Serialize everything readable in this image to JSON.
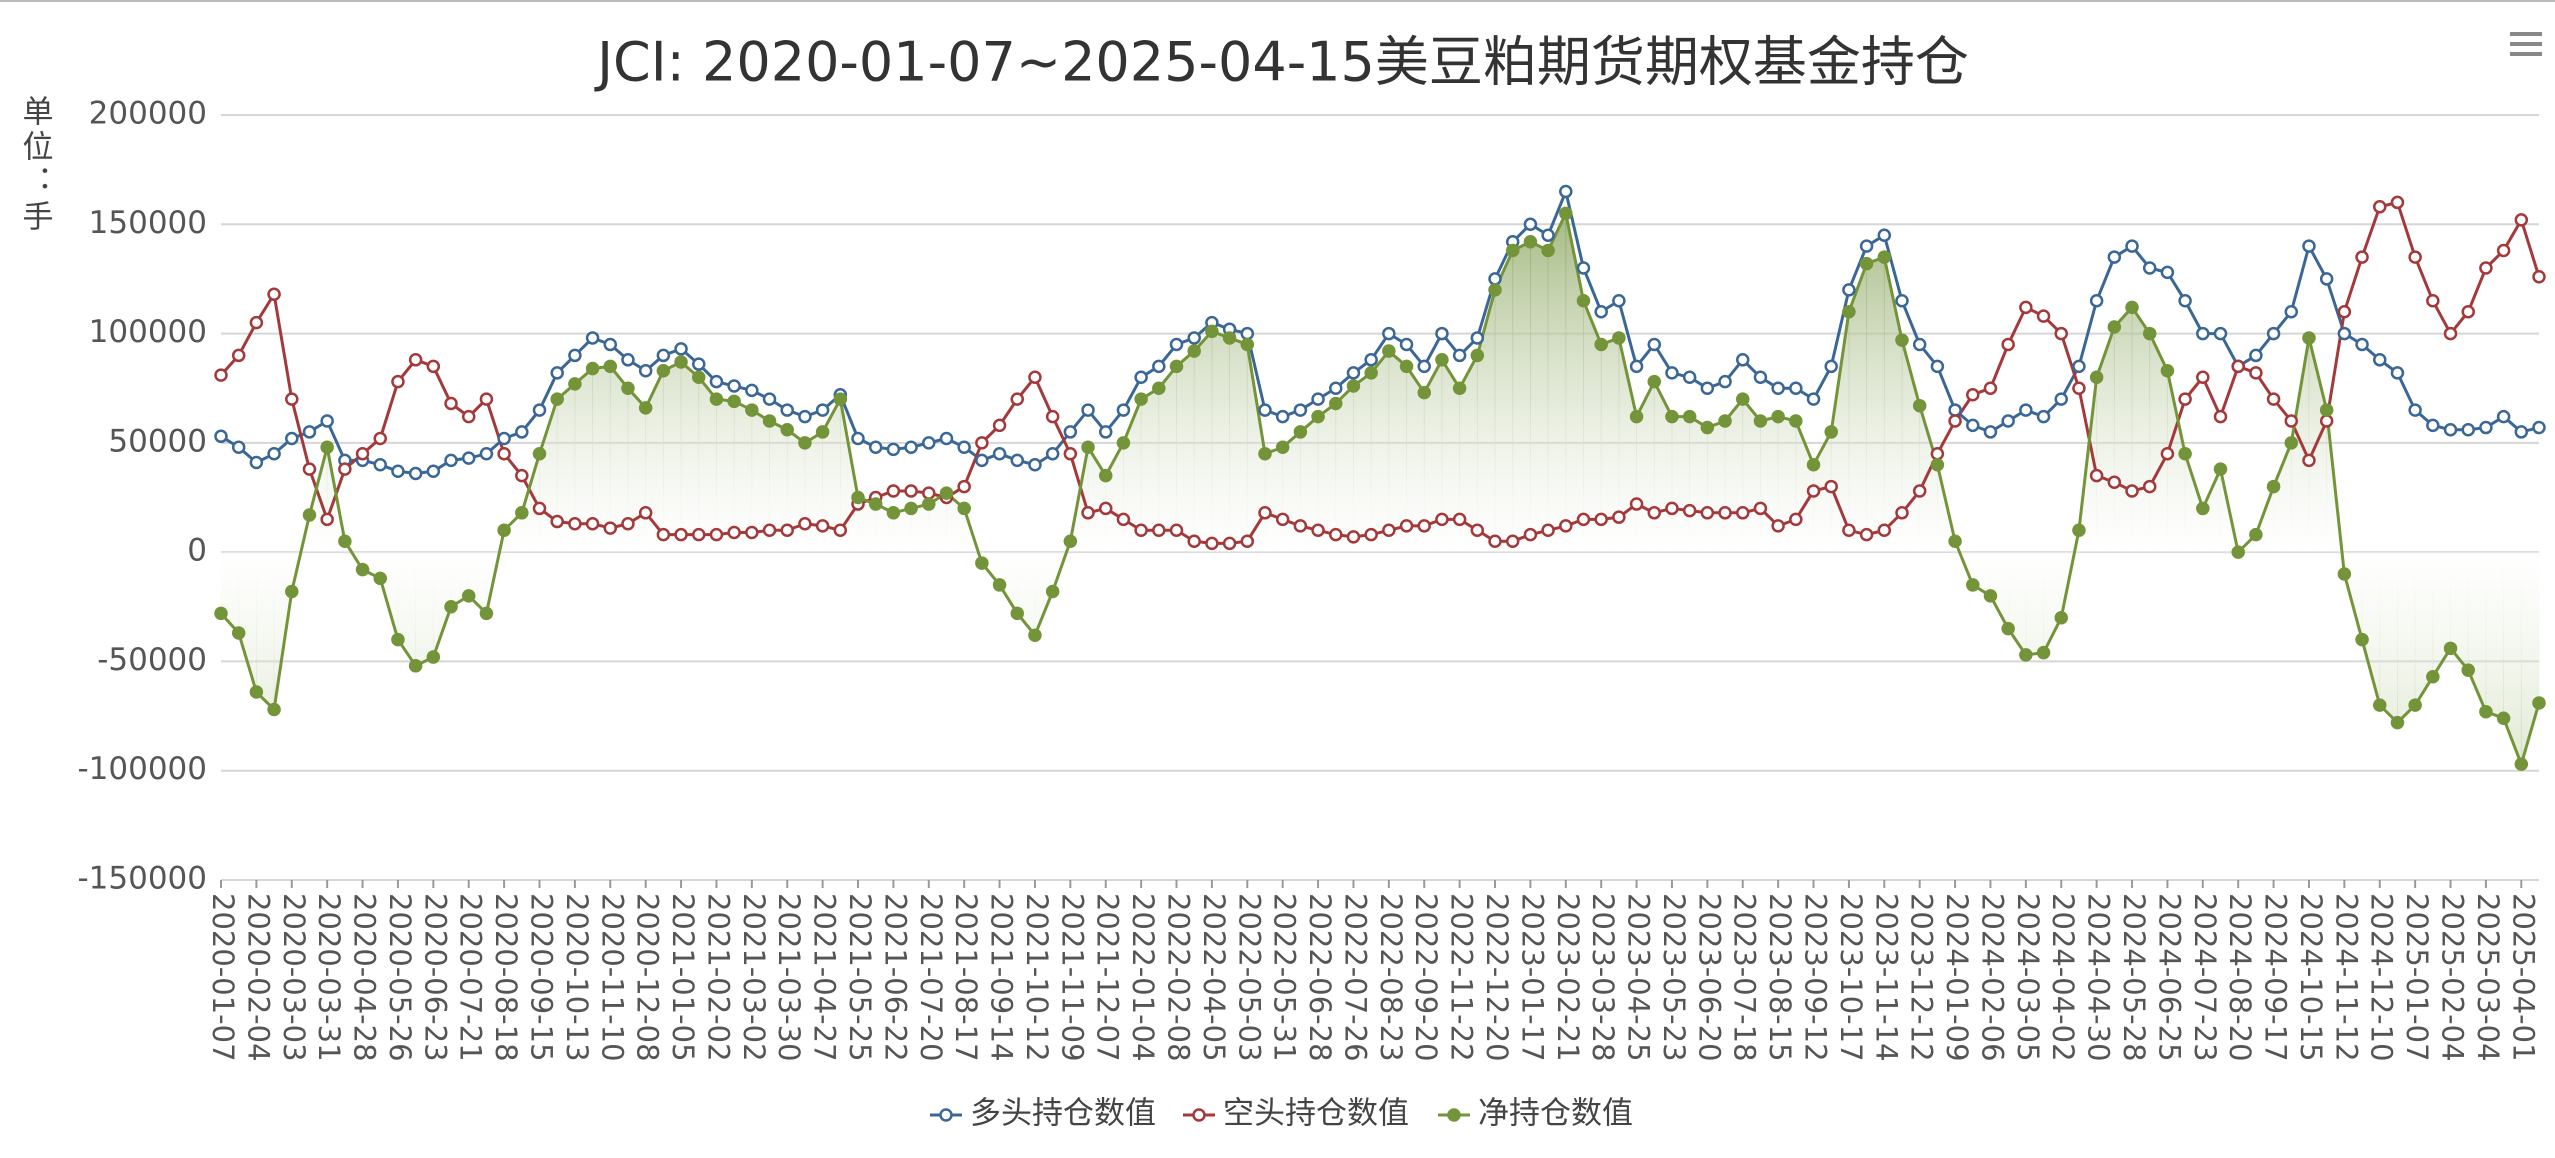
{
  "chart_data": {
    "type": "line",
    "title": "JCI: 2020-01-07~2025-04-15美豆粕期货期权基金持仓",
    "y_label": "单位：手",
    "categories": [
      "2020-01-07",
      null,
      "2020-02-04",
      null,
      "2020-03-03",
      null,
      "2020-03-31",
      null,
      "2020-04-28",
      null,
      "2020-05-26",
      null,
      "2020-06-23",
      null,
      "2020-07-21",
      null,
      "2020-08-18",
      null,
      "2020-09-15",
      null,
      "2020-10-13",
      null,
      "2020-11-10",
      null,
      "2020-12-08",
      null,
      "2021-01-05",
      null,
      "2021-02-02",
      null,
      "2021-03-02",
      null,
      "2021-03-30",
      null,
      "2021-04-27",
      null,
      "2021-05-25",
      null,
      "2021-06-22",
      null,
      "2021-07-20",
      null,
      "2021-08-17",
      null,
      "2021-09-14",
      null,
      "2021-10-12",
      null,
      "2021-11-09",
      null,
      "2021-12-07",
      null,
      "2022-01-04",
      null,
      "2022-02-08",
      null,
      "2022-04-05",
      null,
      "2022-05-03",
      null,
      "2022-05-31",
      null,
      "2022-06-28",
      null,
      "2022-07-26",
      null,
      "2022-08-23",
      null,
      "2022-09-20",
      null,
      "2022-11-22",
      null,
      "2022-12-20",
      null,
      "2023-01-17",
      null,
      "2023-02-21",
      null,
      "2023-03-28",
      null,
      "2023-04-25",
      null,
      "2023-05-23",
      null,
      "2023-06-20",
      null,
      "2023-07-18",
      null,
      "2023-08-15",
      null,
      "2023-09-12",
      null,
      "2023-10-17",
      null,
      "2023-11-14",
      null,
      "2023-12-12",
      null,
      "2024-01-09",
      null,
      "2024-02-06",
      null,
      "2024-03-05",
      null,
      "2024-04-02",
      null,
      "2024-04-30",
      null,
      "2024-05-28",
      null,
      "2024-06-25",
      null,
      "2024-07-23",
      null,
      "2024-08-20",
      null,
      "2024-09-17",
      null,
      "2024-10-15",
      null,
      "2024-11-12",
      null,
      "2024-12-10",
      null,
      "2025-01-07",
      null,
      "2025-02-04",
      null,
      "2025-03-04",
      null,
      "2025-04-01",
      null
    ],
    "series": [
      {
        "name": "多头持仓数值",
        "color": "#3a6796",
        "marker": "hollow",
        "values": [
          53000,
          48000,
          41000,
          45000,
          52000,
          55000,
          60000,
          42000,
          42000,
          40000,
          37000,
          36000,
          37000,
          42000,
          43000,
          45000,
          52000,
          55000,
          65000,
          82000,
          90000,
          98000,
          95000,
          88000,
          83000,
          90000,
          93000,
          86000,
          78000,
          76000,
          74000,
          70000,
          65000,
          62000,
          65000,
          72000,
          52000,
          48000,
          47000,
          48000,
          50000,
          52000,
          48000,
          42000,
          45000,
          42000,
          40000,
          45000,
          55000,
          65000,
          55000,
          65000,
          80000,
          85000,
          95000,
          98000,
          105000,
          102000,
          100000,
          65000,
          62000,
          65000,
          70000,
          75000,
          82000,
          88000,
          100000,
          95000,
          85000,
          100000,
          90000,
          98000,
          125000,
          142000,
          150000,
          145000,
          165000,
          130000,
          110000,
          115000,
          85000,
          95000,
          82000,
          80000,
          75000,
          78000,
          88000,
          80000,
          75000,
          75000,
          70000,
          85000,
          120000,
          140000,
          145000,
          115000,
          95000,
          85000,
          65000,
          58000,
          55000,
          60000,
          65000,
          62000,
          70000,
          85000,
          115000,
          135000,
          140000,
          130000,
          128000,
          115000,
          100000,
          100000,
          85000,
          90000,
          100000,
          110000,
          140000,
          125000,
          100000,
          95000,
          88000,
          82000,
          65000,
          58000,
          56000,
          56000,
          57000,
          62000,
          55000,
          57000
        ]
      },
      {
        "name": "空头持仓数值",
        "color": "#a3393a",
        "marker": "hollow",
        "values": [
          81000,
          90000,
          105000,
          118000,
          70000,
          38000,
          15000,
          38000,
          45000,
          52000,
          78000,
          88000,
          85000,
          68000,
          62000,
          70000,
          45000,
          35000,
          20000,
          14000,
          13000,
          13000,
          11000,
          13000,
          18000,
          8000,
          8000,
          8000,
          8000,
          9000,
          9000,
          10000,
          10000,
          13000,
          12000,
          10000,
          22000,
          25000,
          28000,
          28000,
          27000,
          25000,
          30000,
          50000,
          58000,
          70000,
          80000,
          62000,
          45000,
          18000,
          20000,
          15000,
          10000,
          10000,
          10000,
          5000,
          4000,
          4000,
          5000,
          18000,
          15000,
          12000,
          10000,
          8000,
          7000,
          8000,
          10000,
          12000,
          12000,
          15000,
          15000,
          10000,
          5000,
          5000,
          8000,
          10000,
          12000,
          15000,
          15000,
          16000,
          22000,
          18000,
          20000,
          19000,
          18000,
          18000,
          18000,
          20000,
          12000,
          15000,
          28000,
          30000,
          10000,
          8000,
          10000,
          18000,
          28000,
          45000,
          60000,
          72000,
          75000,
          95000,
          112000,
          108000,
          100000,
          75000,
          35000,
          32000,
          28000,
          30000,
          45000,
          70000,
          80000,
          62000,
          85000,
          82000,
          70000,
          60000,
          42000,
          60000,
          110000,
          135000,
          158000,
          160000,
          135000,
          115000,
          100000,
          110000,
          130000,
          138000,
          152000,
          126000
        ]
      },
      {
        "name": "净持仓数值",
        "color": "#739438",
        "marker": "filled",
        "area": true,
        "values": [
          -28000,
          -37000,
          -64000,
          -72000,
          -18000,
          17000,
          48000,
          5000,
          -8000,
          -12000,
          -40000,
          -52000,
          -48000,
          -25000,
          -20000,
          -28000,
          10000,
          18000,
          45000,
          70000,
          77000,
          84000,
          85000,
          75000,
          66000,
          83000,
          87000,
          80000,
          70000,
          69000,
          65000,
          60000,
          56000,
          50000,
          55000,
          70000,
          25000,
          22000,
          18000,
          20000,
          22000,
          27000,
          20000,
          -5000,
          -15000,
          -28000,
          -38000,
          -18000,
          5000,
          48000,
          35000,
          50000,
          70000,
          75000,
          85000,
          92000,
          101000,
          98000,
          95000,
          45000,
          48000,
          55000,
          62000,
          68000,
          76000,
          82000,
          92000,
          85000,
          73000,
          88000,
          75000,
          90000,
          120000,
          138000,
          142000,
          138000,
          155000,
          115000,
          95000,
          98000,
          62000,
          78000,
          62000,
          62000,
          57000,
          60000,
          70000,
          60000,
          62000,
          60000,
          40000,
          55000,
          110000,
          132000,
          135000,
          97000,
          67000,
          40000,
          5000,
          -15000,
          -20000,
          -35000,
          -47000,
          -46000,
          -30000,
          10000,
          80000,
          103000,
          112000,
          100000,
          83000,
          45000,
          20000,
          38000,
          0,
          8000,
          30000,
          50000,
          98000,
          65000,
          -10000,
          -40000,
          -70000,
          -78000,
          -70000,
          -57000,
          -44000,
          -54000,
          -73000,
          -76000,
          -97000,
          -69000
        ]
      }
    ],
    "ylim": [
      -150000,
      200000
    ],
    "yticks": [
      -150000,
      -100000,
      -50000,
      0,
      50000,
      100000,
      150000,
      200000
    ],
    "grid": true,
    "legend": "bottom"
  }
}
